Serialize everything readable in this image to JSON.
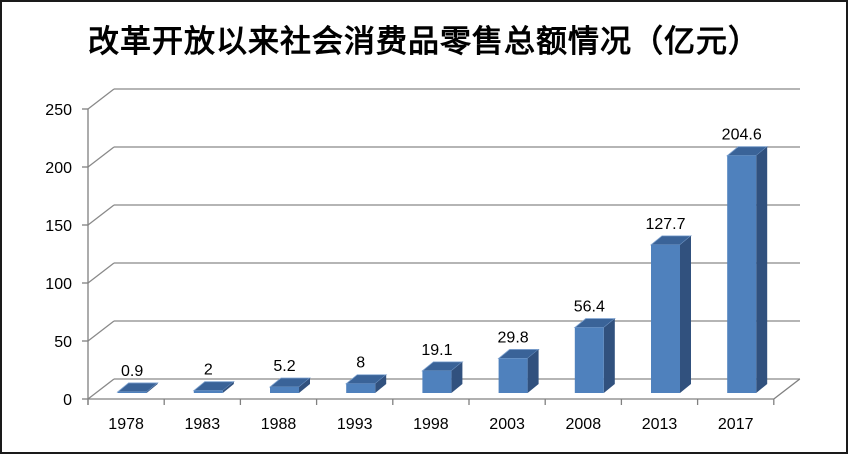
{
  "chart_data": {
    "type": "bar",
    "style": "3d-column",
    "title": "改革开放以来社会消费品零售总额情况（亿元）",
    "categories": [
      "1978",
      "1983",
      "1988",
      "1993",
      "1998",
      "2003",
      "2008",
      "2013",
      "2017"
    ],
    "values": [
      0.9,
      2,
      5.2,
      8,
      19.1,
      29.8,
      56.4,
      127.7,
      204.6
    ],
    "data_labels": [
      "0.9",
      "2",
      "5.2",
      "8",
      "19.1",
      "29.8",
      "56.4",
      "127.7",
      "204.6"
    ],
    "xlabel": "",
    "ylabel": "",
    "y_ticks": [
      0,
      50,
      100,
      150,
      200,
      250
    ],
    "ylim": [
      0,
      250
    ],
    "grid": true,
    "legend": "none",
    "colors": {
      "bar_front": "#4f81bd",
      "bar_side": "#31517e",
      "bar_top": "#3a6398",
      "bar_edge_highlight": "#7fa3d0",
      "gridline": "#898989",
      "axis": "#808080",
      "text": "#000000",
      "frame": "#1a1a1a",
      "background": "#ffffff"
    }
  }
}
